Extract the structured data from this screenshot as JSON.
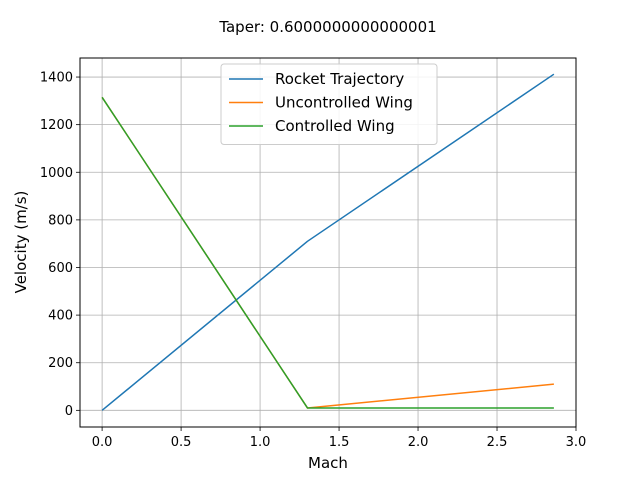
{
  "chart_data": {
    "type": "line",
    "title": "Taper: 0.6000000000000001",
    "xlabel": "Mach",
    "ylabel": "Velocity (m/s)",
    "xlim": [
      -0.14,
      3.0
    ],
    "ylim": [
      -70,
      1480
    ],
    "xticks": [
      0.0,
      0.5,
      1.0,
      1.5,
      2.0,
      2.5,
      3.0
    ],
    "xtick_labels": [
      "0.0",
      "0.5",
      "1.0",
      "1.5",
      "2.0",
      "2.5",
      "3.0"
    ],
    "yticks": [
      0,
      200,
      400,
      600,
      800,
      1000,
      1200,
      1400
    ],
    "ytick_labels": [
      "0",
      "200",
      "400",
      "600",
      "800",
      "1000",
      "1200",
      "1400"
    ],
    "grid": true,
    "legend_position": "top-center",
    "series": [
      {
        "name": "Rocket Trajectory",
        "color": "#1f77b4",
        "x": [
          0.0,
          1.3,
          2.86
        ],
        "y": [
          0,
          710,
          1412
        ]
      },
      {
        "name": "Uncontrolled Wing",
        "color": "#ff7f0e",
        "x": [
          0.0,
          1.3,
          2.86
        ],
        "y": [
          1315,
          10,
          110
        ]
      },
      {
        "name": "Controlled Wing",
        "color": "#2ca02c",
        "x": [
          0.0,
          1.3,
          2.86
        ],
        "y": [
          1315,
          10,
          10
        ]
      }
    ]
  }
}
